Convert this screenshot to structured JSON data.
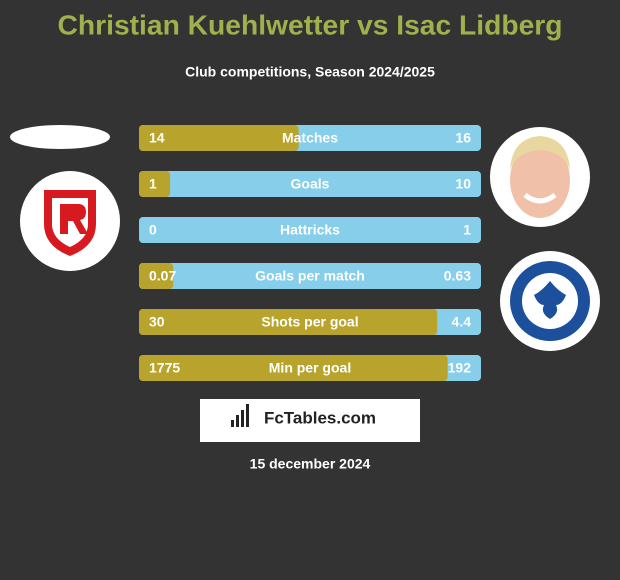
{
  "header": {
    "title": "Christian Kuehlwetter vs Isac Lidberg",
    "subtitle": "Club competitions, Season 2024/2025"
  },
  "rows": [
    {
      "label": "Matches",
      "left": 14,
      "right": 16
    },
    {
      "label": "Goals",
      "left": 1,
      "right": 10
    },
    {
      "label": "Hattricks",
      "left": 0,
      "right": 1
    },
    {
      "label": "Goals per match",
      "left": 0.07,
      "right": 0.63
    },
    {
      "label": "Shots per goal",
      "left": 30,
      "right": 4.4
    },
    {
      "label": "Min per goal",
      "left": 1775,
      "right": 192
    }
  ],
  "colors": {
    "left": "#b8a42c",
    "right": "#87ceeb"
  },
  "brand": "FcTables.com",
  "date": "15 december 2024"
}
